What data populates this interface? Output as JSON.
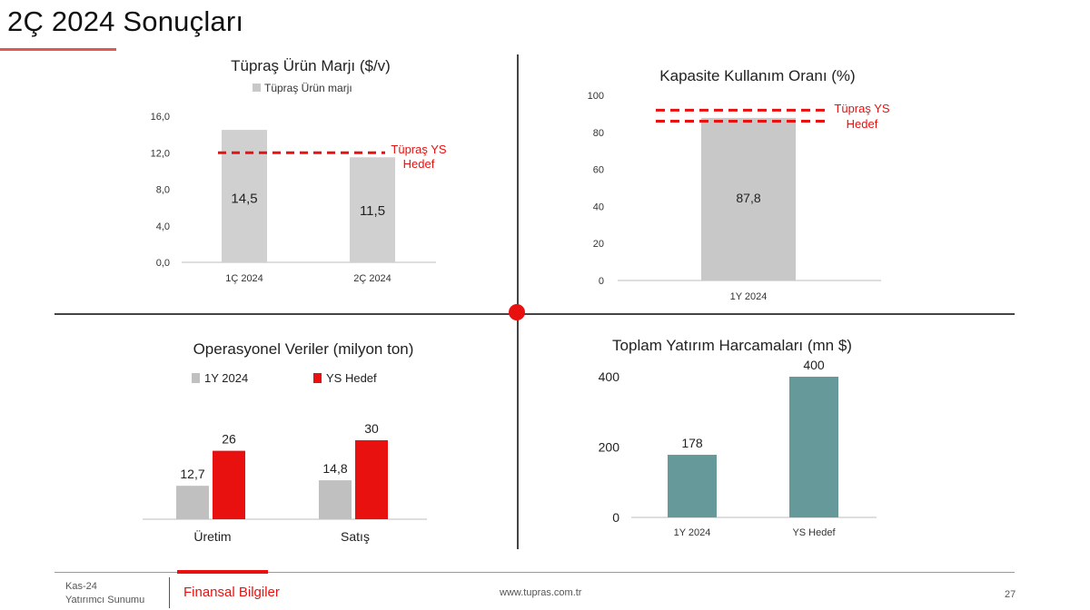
{
  "page": {
    "title": "2Ç 2024 Sonuçları",
    "accent_color": "#e8110f"
  },
  "chart_data": [
    {
      "type": "bar",
      "title": "Tüpraş Ürün Marjı ($/v)",
      "legend": [
        "Tüpraş Ürün marjı"
      ],
      "categories": [
        "1Ç 2024",
        "2Ç 2024"
      ],
      "values": [
        14.5,
        11.5
      ],
      "value_labels": [
        "14,5",
        "11,5"
      ],
      "yticks": [
        "0,0",
        "4,0",
        "8,0",
        "12,0",
        "16,0"
      ],
      "ylim": [
        0,
        16
      ],
      "target": {
        "value": 12.0,
        "label_lines": [
          "Tüpraş YS",
          "Hedef"
        ],
        "style": "dashed",
        "color": "#e8110f"
      },
      "bar_color": "#d0d0d0"
    },
    {
      "type": "bar",
      "title": "Kapasite Kullanım Oranı (%)",
      "categories": [
        "1Y 2024"
      ],
      "values": [
        87.8
      ],
      "value_labels": [
        "87,8"
      ],
      "yticks": [
        "0",
        "20",
        "40",
        "60",
        "80",
        "100"
      ],
      "ylim": [
        0,
        100
      ],
      "target": {
        "range": [
          86,
          92
        ],
        "label_lines": [
          "Tüpraş YS",
          "Hedef"
        ],
        "style": "dashed",
        "color": "#e8110f"
      },
      "bar_color": "#c8c8c8"
    },
    {
      "type": "bar",
      "title": "Operasyonel Veriler (milyon ton)",
      "categories": [
        "Üretim",
        "Satış"
      ],
      "series": [
        {
          "name": "1Y 2024",
          "values": [
            12.7,
            14.8
          ],
          "value_labels": [
            "12,7",
            "14,8"
          ],
          "color": "#c0c0c0"
        },
        {
          "name": "YS Hedef",
          "values": [
            26,
            30
          ],
          "value_labels": [
            "26",
            "30"
          ],
          "color": "#e8110f"
        }
      ],
      "ylim": [
        0,
        30
      ]
    },
    {
      "type": "bar",
      "title": "Toplam Yatırım Harcamaları (mn $)",
      "categories": [
        "1Y 2024",
        "YS Hedef"
      ],
      "values": [
        178,
        400
      ],
      "value_labels": [
        "178",
        "400"
      ],
      "yticks": [
        "0",
        "200",
        "400"
      ],
      "ylim": [
        0,
        400
      ],
      "bar_color": "#669999"
    }
  ],
  "footer": {
    "date": "Kas-24",
    "subtitle": "Yatırımcı Sunumu",
    "section": "Finansal Bilgiler",
    "url": "www.tupras.com.tr",
    "page_number": "27"
  }
}
